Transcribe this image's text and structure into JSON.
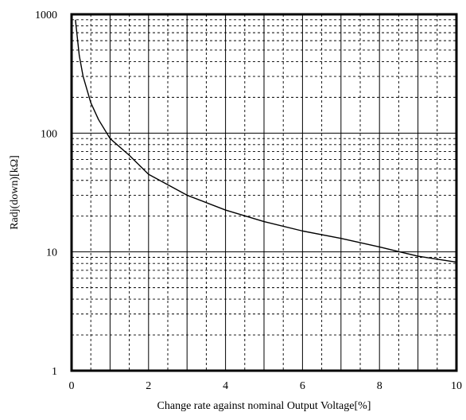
{
  "chart_data": {
    "type": "line",
    "title": "",
    "xlabel": "Change rate against nominal Output Voltage[%]",
    "ylabel": "Radj(down)[kΩ]",
    "xlim": [
      0,
      10
    ],
    "ylim": [
      1,
      1000
    ],
    "yscale": "log",
    "x_ticks": [
      0,
      2,
      4,
      6,
      8,
      10
    ],
    "x_tick_labels": [
      "0",
      "2",
      "4",
      "6",
      "8",
      "10"
    ],
    "y_ticks": [
      1,
      10,
      100,
      1000
    ],
    "y_tick_labels": [
      "1",
      "10",
      "100",
      "1000"
    ],
    "grid": true,
    "legend": "none",
    "colors": {
      "line": "#000000",
      "grid": "#000000",
      "background": "#ffffff"
    },
    "series": [
      {
        "x": [
          0.1,
          0.2,
          0.3,
          0.5,
          0.7,
          1,
          1.5,
          2,
          3,
          4,
          5,
          6,
          7,
          8,
          9,
          10
        ],
        "y": [
          900,
          450,
          300,
          180,
          130,
          90,
          65,
          45,
          30,
          22.5,
          18,
          15,
          13,
          11,
          9.2,
          8.2
        ]
      }
    ]
  }
}
